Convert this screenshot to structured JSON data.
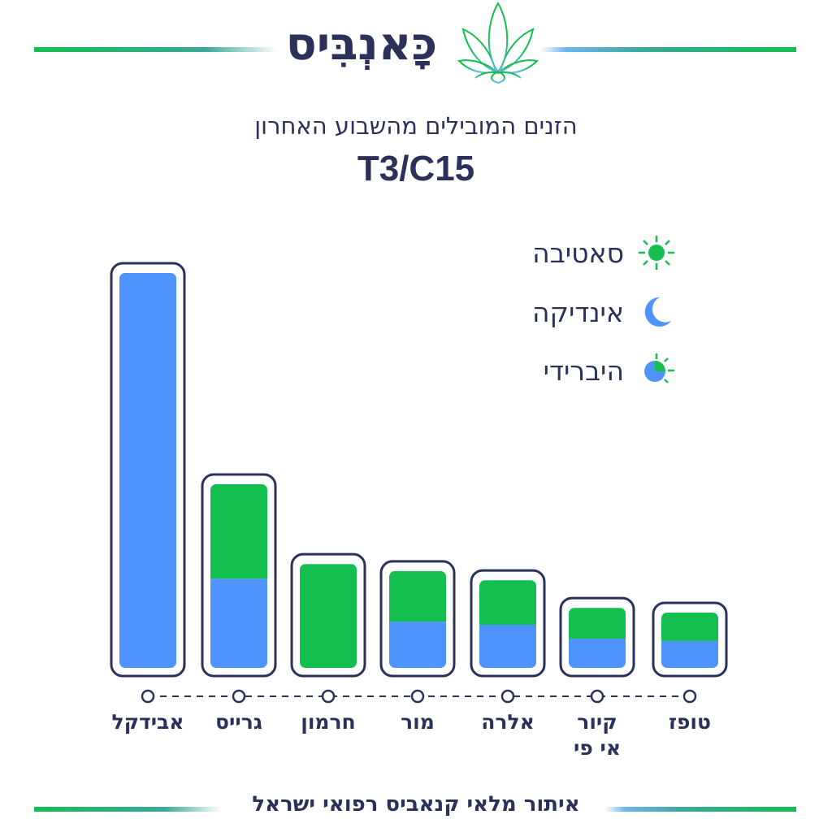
{
  "header": {
    "brand": "כָּאנְבִּיס",
    "subtitle": "הזנים המובילים מהשבוע האחרון",
    "code": "T3/C15"
  },
  "legend": [
    {
      "label": "סאטיבה",
      "icon": "sun-icon",
      "color": "#13bf4f"
    },
    {
      "label": "אינדיקה",
      "icon": "moon-icon",
      "color": "#4f94fc"
    },
    {
      "label": "היברידי",
      "icon": "half-sun-moon-icon",
      "color": "#4f94fc"
    }
  ],
  "footer": {
    "text": "איתור מלאי קנאביס רפואי ישראל"
  },
  "colors": {
    "sativa": "#13bf4f",
    "indica": "#4f94fc",
    "frame": "#2b3158",
    "accent_line": "#13bf4f"
  },
  "chart_data": {
    "type": "bar",
    "stacked": true,
    "categories": [
      "אבידקל",
      "גרייס",
      "חרמון",
      "מור",
      "אלרה",
      "קיור\nאי פי",
      "טופז"
    ],
    "series": [
      {
        "name": "אינדיקה",
        "color": "#4f94fc",
        "values": [
          100,
          22.6,
          0,
          11.7,
          10.9,
          7.4,
          6.8
        ]
      },
      {
        "name": "סאטיבה",
        "color": "#13bf4f",
        "values": [
          0,
          23.9,
          26.3,
          12.8,
          11.3,
          7.8,
          7.2
        ]
      }
    ],
    "grid": false,
    "legend_position": "top-right"
  }
}
